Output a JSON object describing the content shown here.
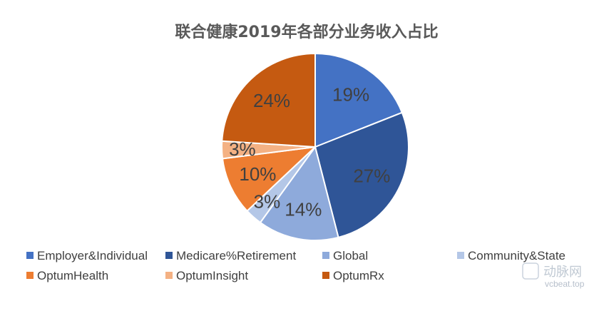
{
  "chart_data": {
    "type": "pie",
    "title": "联合健康2019年各部分业务收入占比",
    "legend_position": "bottom",
    "labels_shown": [
      "19%",
      "27%",
      "14%",
      "3%",
      "10%",
      "3%",
      "24%"
    ],
    "series": [
      {
        "name": "Employer&Individual",
        "value": 19,
        "color": "#4472c4"
      },
      {
        "name": "Medicare%Retirement",
        "value": 27,
        "color": "#2f5597"
      },
      {
        "name": "Global",
        "value": 14,
        "color": "#8eaadb"
      },
      {
        "name": "Community&State",
        "value": 3,
        "color": "#b4c7e7"
      },
      {
        "name": "OptumHealth",
        "value": 10,
        "color": "#ed7d31"
      },
      {
        "name": "OptumInsight",
        "value": 3,
        "color": "#f4b183"
      },
      {
        "name": "OptumRx",
        "value": 24,
        "color": "#c55a11"
      }
    ]
  },
  "watermark": {
    "logo_text": "动脉网",
    "site": "vcbeat.top"
  }
}
